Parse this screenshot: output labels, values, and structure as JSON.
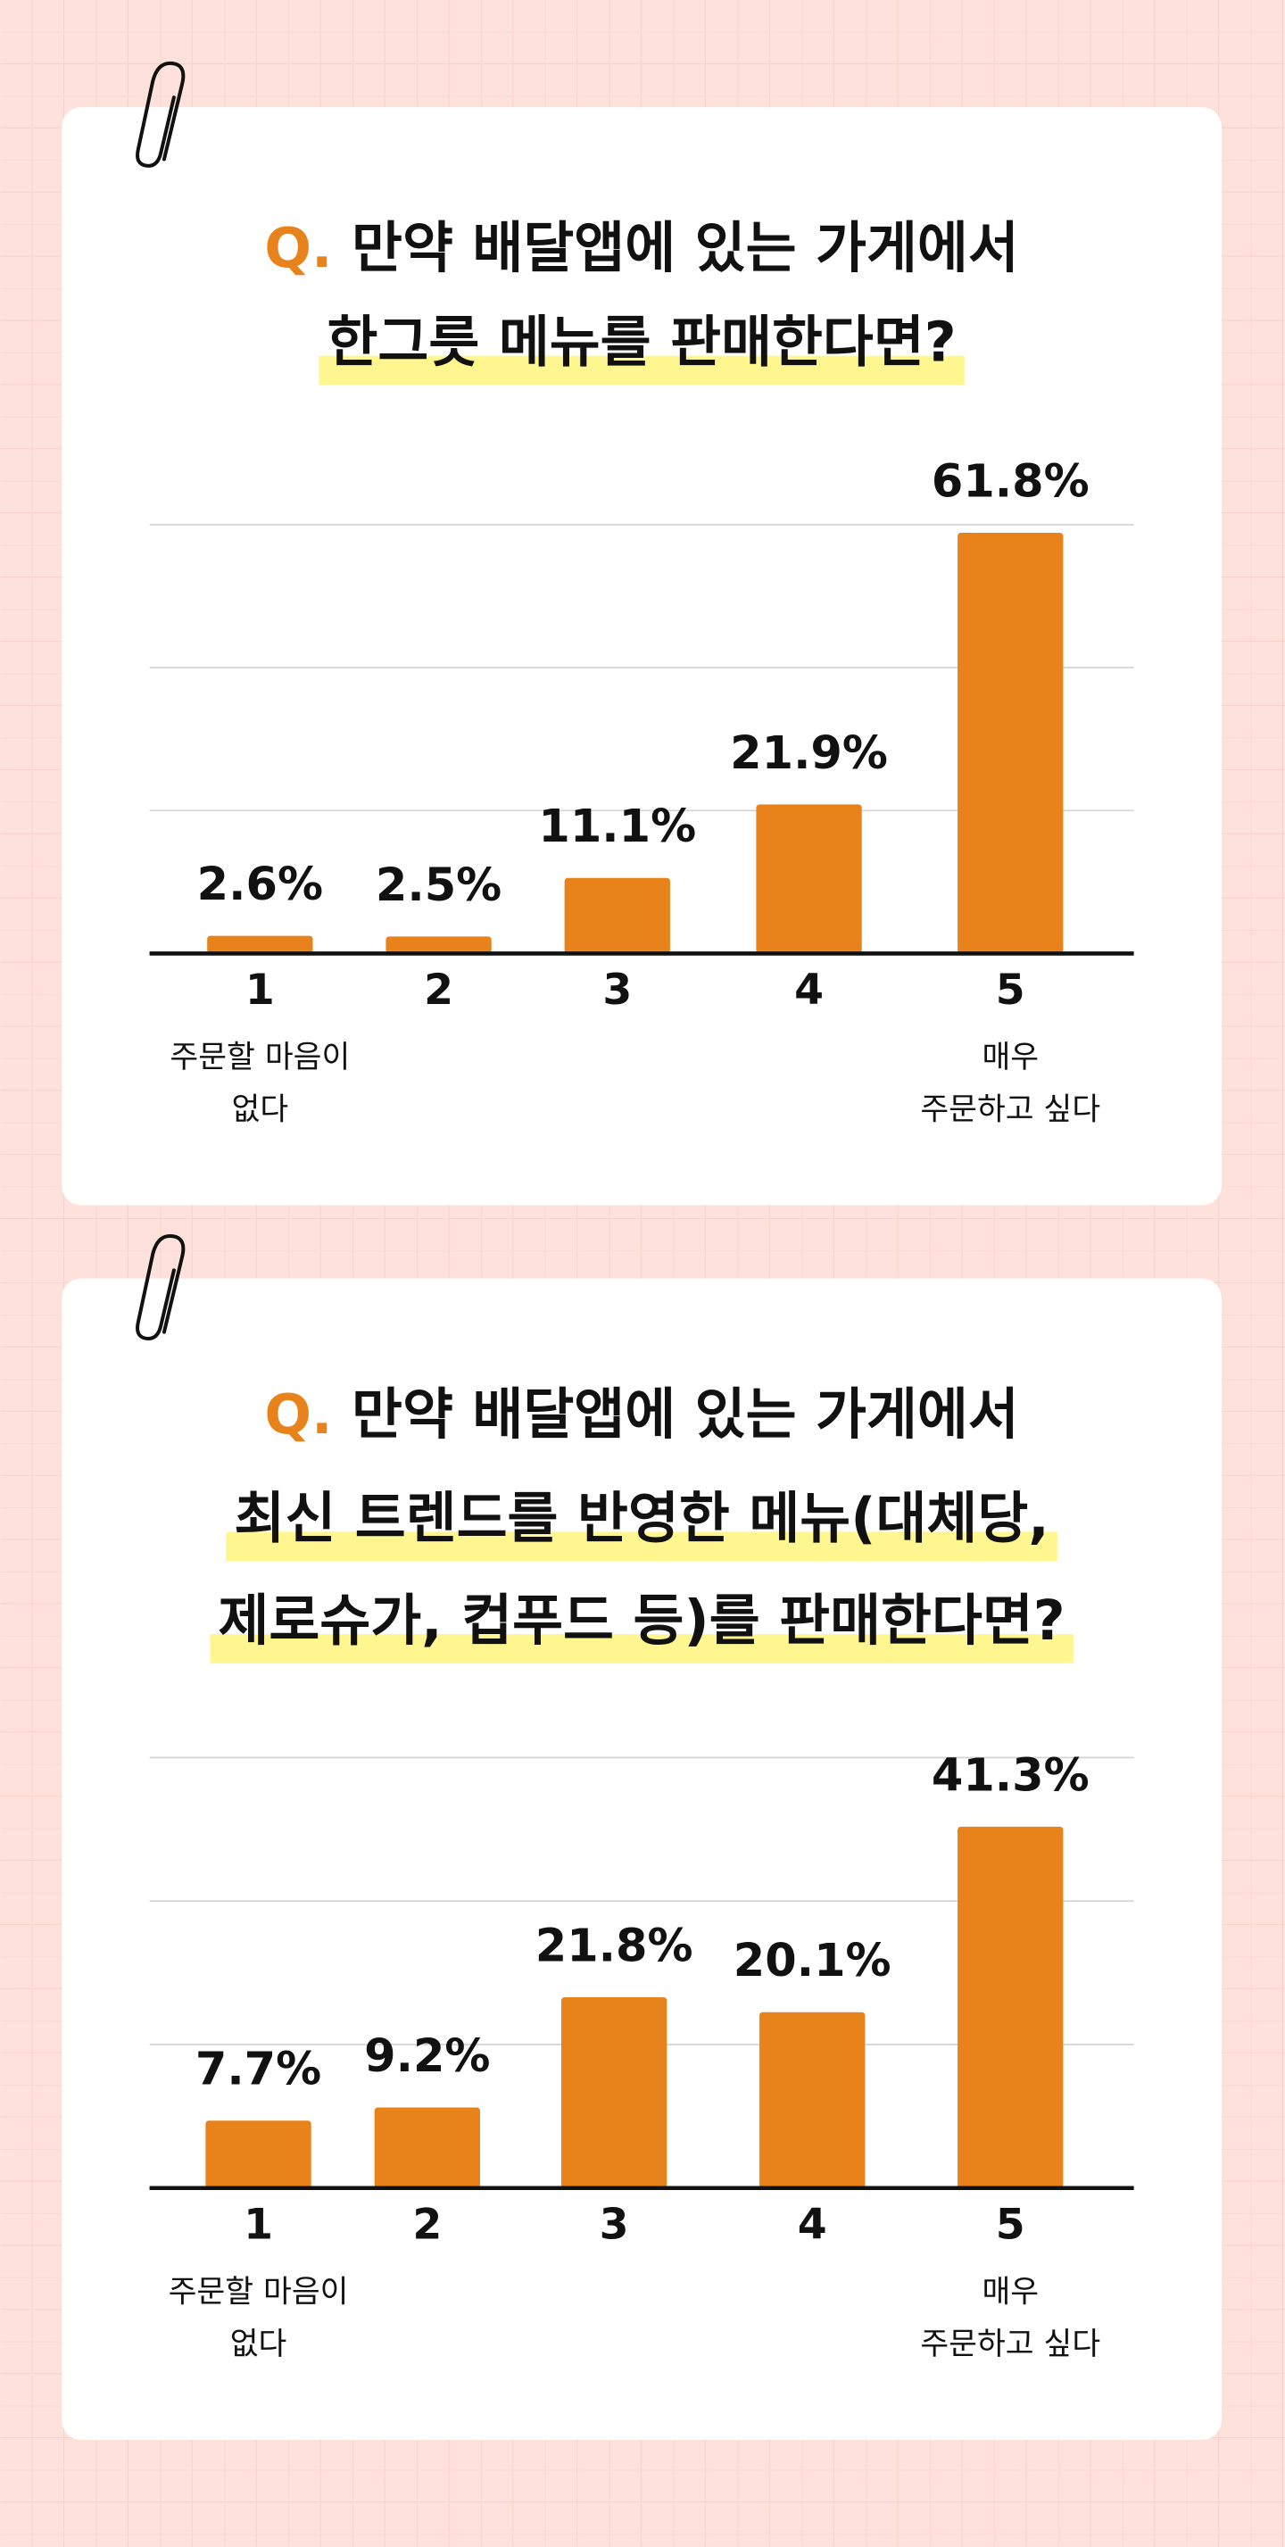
{
  "chart_data": [
    {
      "type": "bar",
      "title_prefix": "Q.",
      "title_lines": [
        "만약 배달앱에 있는 가게에서",
        "한그릇 메뉴를 판매한다면?"
      ],
      "categories": [
        "1",
        "2",
        "3",
        "4",
        "5"
      ],
      "category_notes": [
        [
          "주문할 마음이",
          "없다"
        ],
        null,
        null,
        null,
        [
          "매우",
          "주문하고 싶다"
        ]
      ],
      "values": [
        2.6,
        2.5,
        11.1,
        21.9,
        61.8
      ],
      "value_labels": [
        "2.6%",
        "2.5%",
        "11.1%",
        "21.9%",
        "61.8%"
      ],
      "color": "#e8821a",
      "ylim": [
        0,
        63
      ],
      "yticks": [
        0,
        21,
        42,
        63
      ],
      "grid": true
    },
    {
      "type": "bar",
      "title_prefix": "Q.",
      "title_lines": [
        "만약 배달앱에 있는 가게에서",
        "최신 트렌드를 반영한 메뉴(대체당,",
        "제로슈가, 컵푸드 등)를 판매한다면?"
      ],
      "categories": [
        "1",
        "2",
        "3",
        "4",
        "5"
      ],
      "category_notes": [
        [
          "주문할 마음이",
          "없다"
        ],
        null,
        null,
        null,
        [
          "매우",
          "주문하고 싶다"
        ]
      ],
      "values": [
        7.7,
        9.2,
        21.8,
        20.1,
        41.3
      ],
      "value_labels": [
        "7.7%",
        "9.2%",
        "21.8%",
        "20.1%",
        "41.3%"
      ],
      "color": "#e8821a",
      "ylim": [
        0,
        49.2
      ],
      "yticks": [
        0,
        16.4,
        32.8,
        49.2
      ],
      "grid": true
    }
  ]
}
